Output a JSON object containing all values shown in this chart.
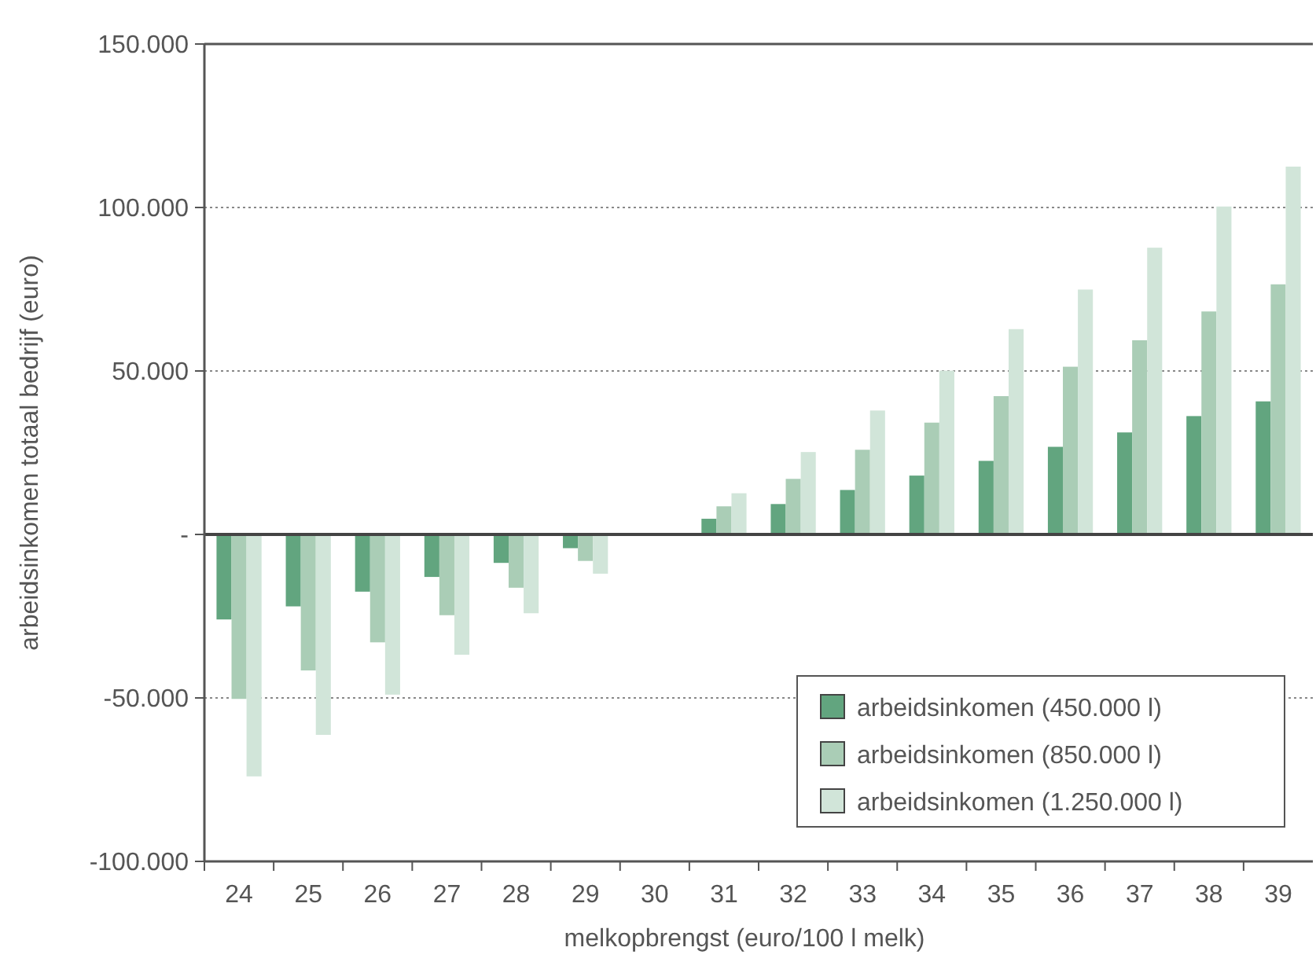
{
  "chart_data": {
    "type": "bar",
    "xlabel": "melkopbrengst (euro/100 l melk)",
    "ylabel": "arbeidsinkomen totaal bedrijf (euro)",
    "categories": [
      "24",
      "25",
      "26",
      "27",
      "28",
      "29",
      "30",
      "31",
      "32",
      "33",
      "34",
      "35",
      "36",
      "37",
      "38",
      "39"
    ],
    "series": [
      {
        "name": "arbeidsinkomen (450.000 l)",
        "color": "#62a57f",
        "values": [
          -26000,
          -22000,
          -17500,
          -13000,
          -8700,
          -4200,
          0,
          4800,
          9300,
          13600,
          18000,
          22500,
          26800,
          31200,
          36200,
          40700
        ]
      },
      {
        "name": "arbeidsinkomen (850.000 l)",
        "color": "#aacdb6",
        "values": [
          -50300,
          -41600,
          -33000,
          -24700,
          -16300,
          -8100,
          0,
          8600,
          17000,
          25900,
          34200,
          42300,
          51300,
          59400,
          68200,
          76500
        ]
      },
      {
        "name": "arbeidsinkomen (1.250.000 l)",
        "color": "#d1e5d9",
        "values": [
          -74000,
          -61300,
          -49000,
          -36800,
          -24100,
          -12000,
          0,
          12600,
          25200,
          37900,
          50100,
          62800,
          74900,
          87700,
          100300,
          112500
        ]
      }
    ],
    "ylim": [
      -100000,
      150000
    ],
    "yticks": [
      {
        "value": -100000,
        "label": "-100.000"
      },
      {
        "value": -50000,
        "label": "-50.000"
      },
      {
        "value": 0,
        "label": "-"
      },
      {
        "value": 50000,
        "label": "50.000"
      },
      {
        "value": 100000,
        "label": "100.000"
      },
      {
        "value": 150000,
        "label": "150.000"
      }
    ],
    "grid": "y",
    "legend": "bottom right"
  }
}
